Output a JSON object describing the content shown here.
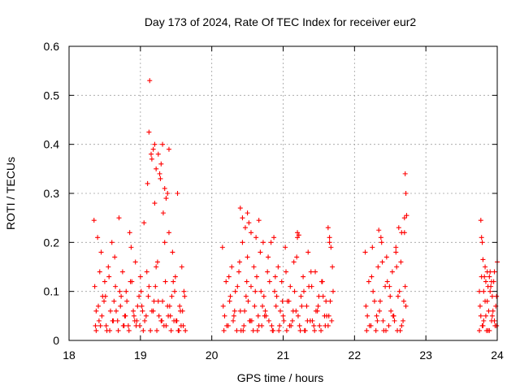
{
  "chart_data": {
    "type": "scatter",
    "title": "Day 173 of 2024, Rate Of TEC Index for receiver eur2",
    "xlabel": "GPS time / hours",
    "ylabel": "ROTI / TECUs",
    "xlim": [
      18,
      24
    ],
    "ylim": [
      0,
      0.6
    ],
    "xticks": [
      18,
      19,
      20,
      21,
      22,
      23,
      24
    ],
    "yticks": [
      0,
      0.1,
      0.2,
      0.3,
      0.4,
      0.5,
      0.6
    ],
    "xtick_labels": [
      "18",
      "19",
      "20",
      "21",
      "22",
      "23",
      "24"
    ],
    "ytick_labels": [
      "0",
      "0.1",
      "0.2",
      "0.3",
      "0.4",
      "0.5",
      "0.6"
    ],
    "grid": true,
    "marker": "+",
    "color": "#ff0000",
    "series": [
      {
        "x": [
          18.35,
          18.38,
          18.4,
          18.42,
          18.45,
          18.47,
          18.5,
          18.52,
          18.55,
          18.58,
          18.6,
          18.63,
          18.65,
          18.68,
          18.7,
          18.72,
          18.75,
          18.78,
          18.8,
          18.83,
          18.85,
          18.88,
          18.9,
          18.93,
          18.95,
          18.98,
          19.0,
          19.02,
          19.05,
          19.08,
          19.1,
          19.12,
          19.15,
          19.18,
          19.2,
          19.22,
          19.25,
          19.28,
          19.3,
          19.32,
          19.35,
          19.38,
          19.4,
          19.42,
          19.45,
          19.48,
          19.5,
          19.52,
          19.55,
          19.58,
          19.6,
          19.62,
          18.36,
          18.41,
          18.46,
          18.51,
          18.56,
          18.61,
          18.66,
          18.71,
          18.76,
          18.81,
          18.86,
          18.91,
          18.96,
          19.01,
          19.06,
          19.11,
          19.16,
          19.21,
          19.26,
          19.31,
          19.36,
          19.41,
          19.46,
          19.51,
          19.56,
          19.61,
          18.37,
          18.43,
          18.49,
          18.57,
          18.64,
          18.73,
          18.79,
          18.87,
          18.94,
          19.03,
          19.09,
          19.14,
          19.19,
          19.24,
          19.29,
          19.34,
          19.39,
          19.44,
          19.49,
          19.54,
          19.59,
          19.12,
          19.13,
          19.16,
          19.18,
          19.2,
          19.22,
          19.25,
          19.27,
          19.29,
          19.31,
          19.34,
          19.36,
          19.38,
          19.4,
          18.38,
          18.44,
          18.53,
          18.62,
          18.69,
          18.77,
          18.84,
          18.92,
          18.99,
          19.04,
          19.23,
          19.33,
          19.43,
          19.47,
          19.53,
          19.57,
          19.63,
          20.15,
          20.18,
          20.2,
          20.23,
          20.25,
          20.28,
          20.3,
          20.33,
          20.35,
          20.38,
          20.4,
          20.43,
          20.45,
          20.48,
          20.5,
          20.53,
          20.55,
          20.58,
          20.6,
          20.63,
          20.65,
          20.68,
          20.7,
          20.73,
          20.75,
          20.78,
          20.8,
          20.83,
          20.85,
          20.88,
          20.9,
          20.93,
          20.95,
          20.98,
          21.0,
          21.03,
          21.05,
          21.08,
          21.1,
          21.13,
          21.15,
          21.18,
          21.2,
          21.23,
          21.25,
          21.28,
          21.3,
          21.33,
          21.35,
          21.38,
          21.4,
          21.43,
          21.45,
          21.48,
          21.5,
          21.53,
          21.55,
          21.58,
          21.6,
          21.63,
          21.65,
          21.68,
          21.7,
          20.16,
          20.21,
          20.26,
          20.31,
          20.36,
          20.41,
          20.46,
          20.51,
          20.56,
          20.61,
          20.66,
          20.71,
          20.76,
          20.81,
          20.86,
          20.91,
          20.96,
          21.01,
          21.06,
          21.11,
          21.16,
          21.21,
          21.26,
          21.31,
          21.36,
          21.41,
          21.46,
          21.51,
          21.56,
          21.61,
          21.66,
          20.17,
          20.24,
          20.32,
          20.39,
          20.44,
          20.49,
          20.54,
          20.59,
          20.64,
          20.69,
          20.74,
          20.79,
          20.84,
          20.89,
          20.94,
          20.99,
          21.04,
          21.09,
          21.14,
          21.19,
          21.24,
          21.29,
          21.34,
          21.39,
          21.44,
          21.49,
          21.54,
          21.59,
          21.64,
          21.69,
          20.4,
          20.43,
          20.47,
          20.5,
          20.52,
          20.55,
          20.62,
          20.66,
          20.72,
          20.87,
          21.2,
          21.22,
          21.63,
          21.65,
          21.67,
          22.15,
          22.18,
          22.2,
          22.23,
          22.25,
          22.28,
          22.3,
          22.33,
          22.35,
          22.38,
          22.4,
          22.43,
          22.45,
          22.48,
          22.5,
          22.53,
          22.55,
          22.58,
          22.6,
          22.63,
          22.65,
          22.68,
          22.7,
          22.72,
          22.16,
          22.21,
          22.26,
          22.31,
          22.36,
          22.41,
          22.46,
          22.51,
          22.56,
          22.61,
          22.66,
          22.71,
          22.17,
          22.24,
          22.32,
          22.39,
          22.44,
          22.49,
          22.54,
          22.59,
          22.64,
          22.69,
          22.34,
          22.37,
          22.58,
          22.62,
          22.66,
          22.7,
          22.71,
          22.72,
          22.73,
          23.75,
          23.77,
          23.78,
          23.8,
          23.82,
          23.83,
          23.85,
          23.87,
          23.88,
          23.9,
          23.92,
          23.93,
          23.95,
          23.97,
          23.98,
          24.0,
          23.76,
          23.79,
          23.81,
          23.84,
          23.86,
          23.89,
          23.91,
          23.94,
          23.96,
          23.99,
          23.75,
          23.78,
          23.81,
          23.84,
          23.87,
          23.9,
          23.93,
          23.96,
          23.99,
          23.77,
          23.79,
          23.8,
          23.83,
          23.86,
          23.89,
          23.92
        ],
        "y": [
          0.245,
          0.06,
          0.21,
          0.04,
          0.18,
          0.09,
          0.12,
          0.03,
          0.15,
          0.06,
          0.2,
          0.08,
          0.11,
          0.04,
          0.25,
          0.07,
          0.14,
          0.05,
          0.1,
          0.03,
          0.22,
          0.12,
          0.06,
          0.16,
          0.04,
          0.09,
          0.13,
          0.07,
          0.24,
          0.05,
          0.32,
          0.11,
          0.38,
          0.06,
          0.28,
          0.15,
          0.08,
          0.33,
          0.04,
          0.26,
          0.12,
          0.07,
          0.22,
          0.05,
          0.18,
          0.1,
          0.04,
          0.3,
          0.07,
          0.15,
          0.03,
          0.09,
          0.11,
          0.07,
          0.05,
          0.09,
          0.13,
          0.04,
          0.06,
          0.1,
          0.03,
          0.08,
          0.12,
          0.05,
          0.07,
          0.1,
          0.04,
          0.09,
          0.06,
          0.11,
          0.05,
          0.08,
          0.03,
          0.07,
          0.12,
          0.04,
          0.06,
          0.1,
          0.03,
          0.14,
          0.08,
          0.02,
          0.17,
          0.09,
          0.05,
          0.19,
          0.03,
          0.06,
          0.14,
          0.02,
          0.08,
          0.16,
          0.04,
          0.2,
          0.05,
          0.09,
          0.13,
          0.02,
          0.06,
          0.425,
          0.53,
          0.37,
          0.39,
          0.4,
          0.35,
          0.38,
          0.34,
          0.36,
          0.4,
          0.31,
          0.29,
          0.3,
          0.39,
          0.02,
          0.03,
          0.02,
          0.04,
          0.02,
          0.03,
          0.02,
          0.04,
          0.03,
          0.02,
          0.02,
          0.03,
          0.02,
          0.04,
          0.02,
          0.03,
          0.02,
          0.19,
          0.05,
          0.12,
          0.03,
          0.08,
          0.15,
          0.04,
          0.1,
          0.02,
          0.14,
          0.06,
          0.2,
          0.03,
          0.09,
          0.17,
          0.04,
          0.11,
          0.02,
          0.07,
          0.13,
          0.05,
          0.18,
          0.03,
          0.09,
          0.06,
          0.14,
          0.04,
          0.2,
          0.02,
          0.1,
          0.07,
          0.15,
          0.03,
          0.12,
          0.05,
          0.19,
          0.02,
          0.08,
          0.11,
          0.04,
          0.16,
          0.06,
          0.21,
          0.03,
          0.09,
          0.13,
          0.02,
          0.07,
          0.18,
          0.04,
          0.11,
          0.03,
          0.14,
          0.06,
          0.09,
          0.02,
          0.12,
          0.05,
          0.08,
          0.03,
          0.21,
          0.04,
          0.1,
          0.07,
          0.03,
          0.09,
          0.05,
          0.11,
          0.02,
          0.06,
          0.08,
          0.04,
          0.1,
          0.03,
          0.07,
          0.05,
          0.12,
          0.02,
          0.09,
          0.06,
          0.04,
          0.08,
          0.03,
          0.1,
          0.05,
          0.07,
          0.02,
          0.11,
          0.04,
          0.06,
          0.03,
          0.09,
          0.05,
          0.08,
          0.02,
          0.13,
          0.06,
          0.16,
          0.02,
          0.12,
          0.04,
          0.15,
          0.02,
          0.1,
          0.05,
          0.17,
          0.03,
          0.13,
          0.02,
          0.08,
          0.14,
          0.03,
          0.06,
          0.17,
          0.02,
          0.1,
          0.04,
          0.14,
          0.02,
          0.07,
          0.12,
          0.03,
          0.05,
          0.15,
          0.27,
          0.25,
          0.23,
          0.26,
          0.24,
          0.22,
          0.21,
          0.245,
          0.2,
          0.21,
          0.22,
          0.215,
          0.23,
          0.2,
          0.19,
          0.18,
          0.05,
          0.12,
          0.03,
          0.19,
          0.08,
          0.02,
          0.15,
          0.06,
          0.2,
          0.04,
          0.11,
          0.17,
          0.03,
          0.09,
          0.14,
          0.05,
          0.18,
          0.02,
          0.1,
          0.16,
          0.04,
          0.22,
          0.07,
          0.07,
          0.03,
          0.1,
          0.05,
          0.08,
          0.02,
          0.12,
          0.06,
          0.04,
          0.09,
          0.03,
          0.11,
          0.02,
          0.13,
          0.04,
          0.16,
          0.02,
          0.11,
          0.05,
          0.15,
          0.02,
          0.08,
          0.225,
          0.21,
          0.19,
          0.23,
          0.22,
          0.25,
          0.34,
          0.3,
          0.255,
          0.1,
          0.05,
          0.21,
          0.03,
          0.13,
          0.08,
          0.02,
          0.11,
          0.06,
          0.14,
          0.04,
          0.09,
          0.12,
          0.03,
          0.07,
          0.16,
          0.07,
          0.03,
          0.1,
          0.05,
          0.08,
          0.02,
          0.11,
          0.06,
          0.04,
          0.09,
          0.02,
          0.13,
          0.04,
          0.12,
          0.02,
          0.1,
          0.05,
          0.14,
          0.03,
          0.245,
          0.2,
          0.165,
          0.15,
          0.14,
          0.13,
          0.12
        ]
      }
    ]
  }
}
